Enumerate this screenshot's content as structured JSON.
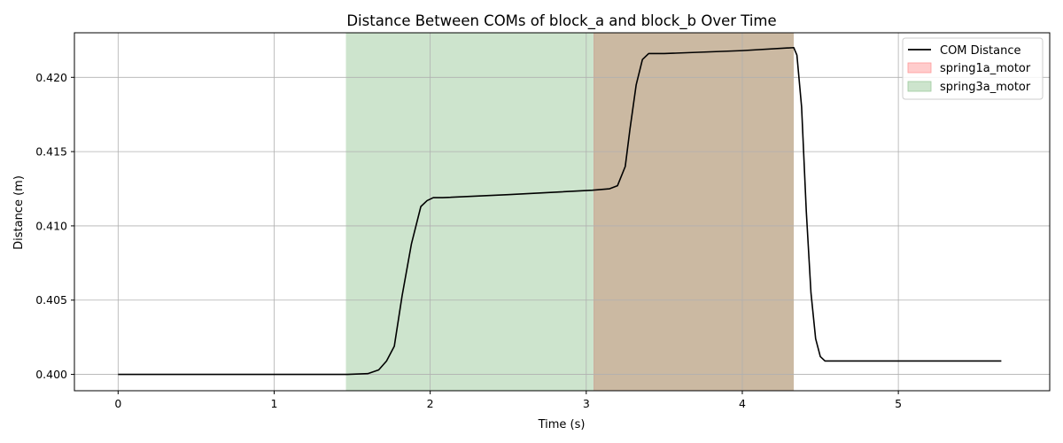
{
  "chart_data": {
    "type": "line",
    "title": "Distance Between COMs of block_a and block_b Over Time",
    "xlabel": "Time (s)",
    "ylabel": "Distance (m)",
    "xlim": [
      -0.28,
      5.97
    ],
    "ylim": [
      0.3989,
      0.423
    ],
    "xticks": [
      0,
      1,
      2,
      3,
      4,
      5
    ],
    "xtick_labels": [
      "0",
      "1",
      "2",
      "3",
      "4",
      "5"
    ],
    "yticks": [
      0.4,
      0.405,
      0.41,
      0.415,
      0.42
    ],
    "ytick_labels": [
      "0.400",
      "0.405",
      "0.410",
      "0.415",
      "0.420"
    ],
    "grid": true,
    "legend_position": "top-right",
    "series": [
      {
        "name": "COM Distance",
        "color": "#000000",
        "x": [
          0,
          0.5,
          1.0,
          1.4,
          1.47,
          1.6,
          1.67,
          1.72,
          1.77,
          1.82,
          1.88,
          1.94,
          1.98,
          2.02,
          2.08,
          2.5,
          3.04,
          3.15,
          3.2,
          3.25,
          3.28,
          3.32,
          3.36,
          3.4,
          3.45,
          3.5,
          4.0,
          4.33,
          4.35,
          4.38,
          4.41,
          4.44,
          4.47,
          4.5,
          4.53,
          4.6,
          5.0,
          5.4,
          5.66
        ],
        "y": [
          0.4,
          0.4,
          0.4,
          0.4,
          0.4,
          0.40005,
          0.4003,
          0.4009,
          0.4019,
          0.4053,
          0.4088,
          0.4113,
          0.4117,
          0.4119,
          0.4119,
          0.4121,
          0.4124,
          0.4125,
          0.4127,
          0.414,
          0.4165,
          0.4195,
          0.4212,
          0.4216,
          0.4216,
          0.4216,
          0.4218,
          0.422,
          0.4215,
          0.418,
          0.411,
          0.4055,
          0.4024,
          0.4012,
          0.4009,
          0.4009,
          0.4009,
          0.4009,
          0.4009
        ]
      }
    ],
    "spans": [
      {
        "name": "spring1a_motor",
        "x0": 3.05,
        "x1": 4.33,
        "color": "#ff9999",
        "legend_color": "#ffcccc"
      },
      {
        "name": "spring3a_motor",
        "x0": 1.46,
        "x1": 4.33,
        "color": "#9fcc9f",
        "legend_color": "#cde4cd"
      }
    ],
    "overlap_color": "#cbb9a2"
  }
}
